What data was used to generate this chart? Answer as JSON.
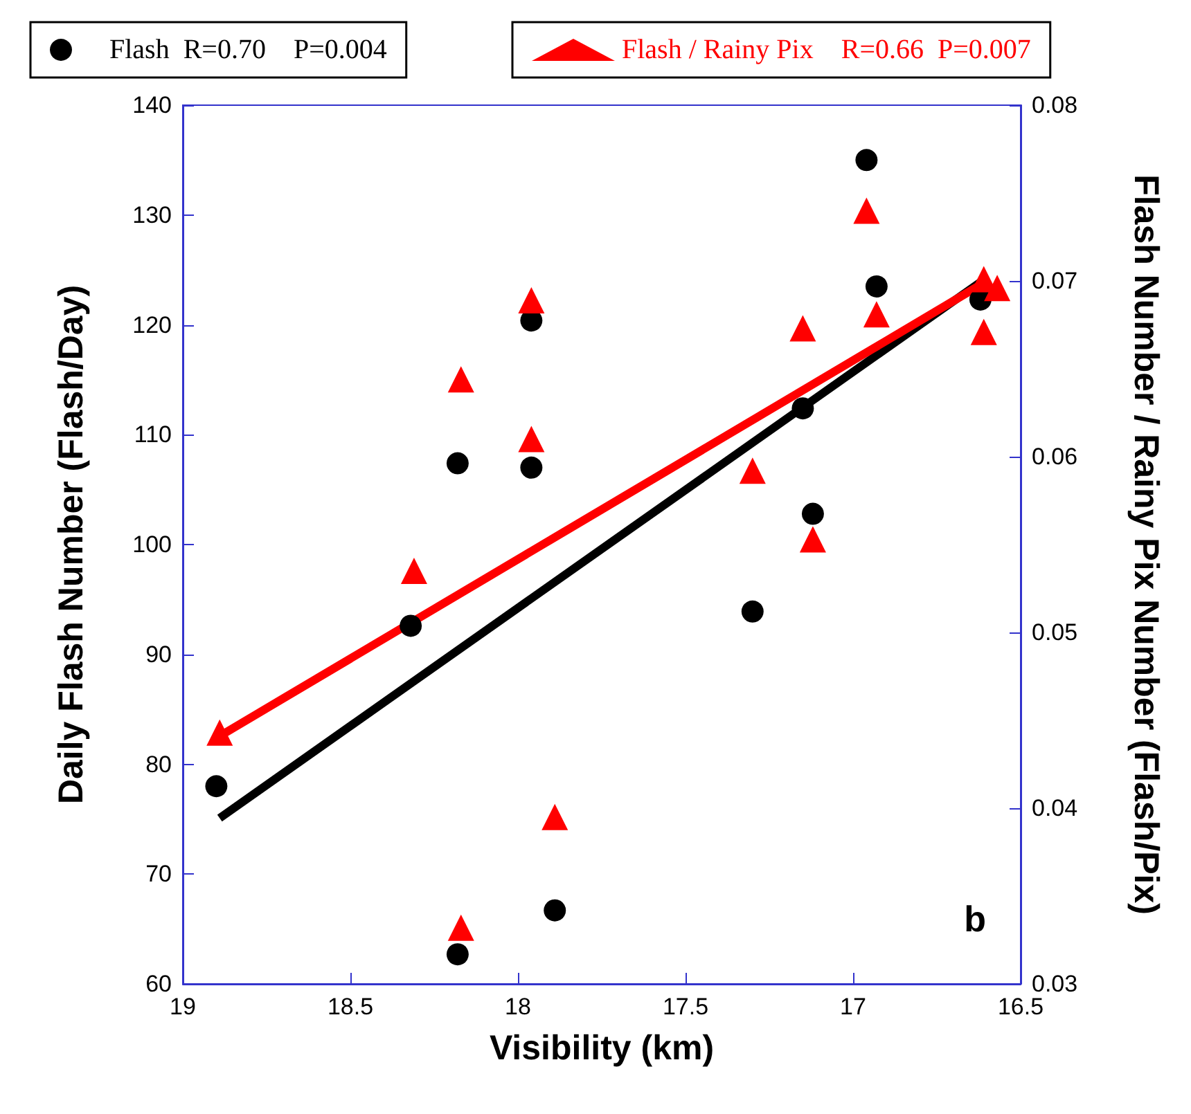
{
  "chart_data": {
    "type": "scatter",
    "xlabel": "Visibility (km)",
    "ylabel": "Daily Flash Number (Flash/Day)",
    "y2label": "Flash Number / Rainy Pix Number (Flash/Pix)",
    "xlim": [
      19,
      16.5
    ],
    "xticks": [
      19,
      18.5,
      18,
      17.5,
      17,
      16.5
    ],
    "ylim": [
      60,
      140
    ],
    "yticks": [
      60,
      70,
      80,
      90,
      100,
      110,
      120,
      130,
      140
    ],
    "y2lim": [
      0.03,
      0.08
    ],
    "y2ticks": [
      0.03,
      0.04,
      0.05,
      0.06,
      0.07,
      0.08
    ],
    "legend": "top",
    "grid": false,
    "annotations": [
      "b"
    ],
    "series": [
      {
        "name": "Flash  R=0.70    P=0.004",
        "marker": "circle",
        "color": "#000000",
        "x": [
          18.9,
          18.32,
          18.18,
          17.96,
          17.96,
          17.89,
          18.18,
          16.96,
          16.93,
          17.15,
          17.12,
          17.3,
          16.62
        ],
        "values": [
          78.0,
          92.6,
          107.4,
          120.4,
          107.0,
          66.7,
          62.7,
          135.0,
          123.5,
          112.4,
          102.8,
          93.9,
          122.3
        ]
      },
      {
        "type": "line",
        "line_style": "solid",
        "color": "#000000",
        "x": [
          18.89,
          16.61
        ],
        "values": [
          75.1,
          124.1
        ]
      },
      {
        "name": "Flash / Rainy Pix    R=0.66  P=0.007",
        "marker": "triangle",
        "axis": "y2",
        "color": "#ff0000",
        "x": [
          18.89,
          18.31,
          18.17,
          18.17,
          17.96,
          17.96,
          17.89,
          16.96,
          16.93,
          17.15,
          17.3,
          17.12,
          16.61,
          16.61,
          16.57
        ],
        "values": [
          0.0443,
          0.0535,
          0.0644,
          0.0332,
          0.0689,
          0.061,
          0.0395,
          0.074,
          0.0681,
          0.0673,
          0.0592,
          0.0553,
          0.0671,
          0.0701,
          0.0696
        ]
      },
      {
        "type": "line",
        "line_style": "solid",
        "axis": "y2",
        "color": "#ff0000",
        "x": [
          18.89,
          16.6
        ],
        "values": [
          0.0441,
          0.07
        ]
      }
    ]
  }
}
